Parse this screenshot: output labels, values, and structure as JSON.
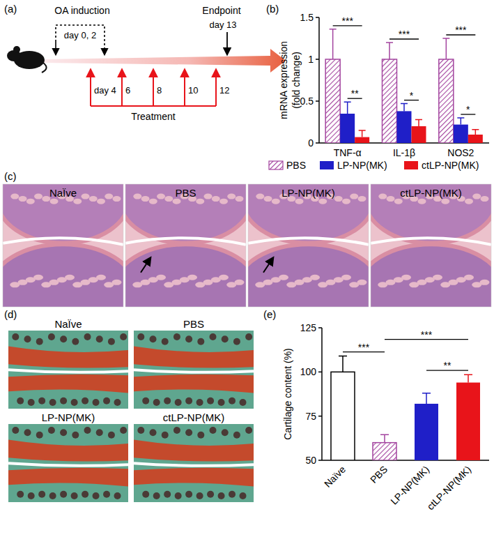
{
  "timeline": {
    "title": "(a)",
    "induction_label": "OA induction",
    "induction_days": "day 0, 2",
    "endpoint_label": "Endpoint",
    "endpoint_day": "day 13",
    "treatment_days": [
      "day 4",
      "6",
      "8",
      "10",
      "12"
    ],
    "treatment_label": "Treatment"
  },
  "chart_data": [
    {
      "type": "bar",
      "title": "(b)",
      "ylabel": [
        "mRNA expression",
        "(fold change)"
      ],
      "categories": [
        "TNF-α",
        "IL-1β",
        "NOS2"
      ],
      "series": [
        {
          "name": "PBS",
          "color": "#a3449f",
          "values": [
            1,
            1,
            1
          ],
          "errors": [
            0.36,
            0.2,
            0.25
          ]
        },
        {
          "name": "LP-NP(MK)",
          "color": "#1f1fc8",
          "values": [
            0.35,
            0.38,
            0.22
          ],
          "errors": [
            0.14,
            0.09,
            0.08
          ]
        },
        {
          "name": "ctLP-NP(MK)",
          "color": "#e8141a",
          "values": [
            0.07,
            0.2,
            0.1
          ],
          "errors": [
            0.08,
            0.08,
            0.06
          ]
        }
      ],
      "ylim": [
        0,
        1.5
      ],
      "yticks": [
        0,
        0.5,
        1,
        1.5
      ],
      "legend": "bottom",
      "annotations": [
        {
          "category": 0,
          "from": 0,
          "to": 2,
          "text": "***"
        },
        {
          "category": 0,
          "from": 1,
          "to": 2,
          "text": "**"
        },
        {
          "category": 1,
          "from": 0,
          "to": 2,
          "text": "***"
        },
        {
          "category": 1,
          "from": 1,
          "to": 2,
          "text": "*"
        },
        {
          "category": 2,
          "from": 0,
          "to": 2,
          "text": "***"
        },
        {
          "category": 2,
          "from": 1,
          "to": 2,
          "text": "*"
        }
      ]
    },
    {
      "type": "bar",
      "title": "(e)",
      "ylabel": "Cartilage content (%)",
      "categories": [
        "Naïve",
        "PBS",
        "LP-NP(MK)",
        "ctLP-NP(MK)"
      ],
      "values": [
        100,
        60,
        82,
        94
      ],
      "errors": [
        9,
        4.5,
        6,
        4.5
      ],
      "colors": [
        "#ffffff",
        "#a3449f",
        "#1f1fc8",
        "#e8141a"
      ],
      "ylim": [
        50,
        125
      ],
      "yticks": [
        50,
        75,
        100,
        125
      ],
      "annotations": [
        {
          "from": 0,
          "to": 1,
          "text": "***"
        },
        {
          "from": 1,
          "to": 3,
          "text": "***"
        },
        {
          "from": 2,
          "to": 3,
          "text": "**"
        }
      ]
    }
  ],
  "histology_c": {
    "title": "(c)",
    "labels": [
      "NaÏve",
      "PBS",
      "LP-NP(MK)",
      "ctLP-NP(MK)"
    ]
  },
  "histology_d": {
    "title": "(d)",
    "labels": [
      "NaÏve",
      "PBS",
      "LP-NP(MK)",
      "ctLP-NP(MK)"
    ]
  }
}
